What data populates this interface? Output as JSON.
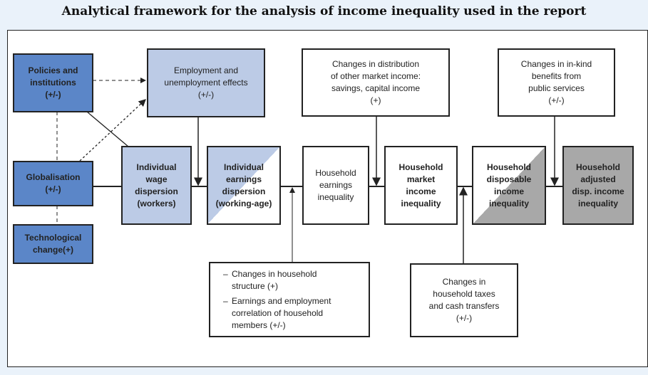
{
  "title": "Analytical framework for the analysis of income inequality used in the report",
  "boxes": {
    "policies": [
      "Policies and",
      "institutions",
      "(+/-)"
    ],
    "globalisation": [
      "Globalisation",
      "(+/-)"
    ],
    "technological": [
      "Technological",
      "change(+)"
    ],
    "employment": [
      "Employment and",
      "unemployment effects",
      "(+/-)"
    ],
    "wage": [
      "Individual",
      "wage",
      "dispersion",
      "(workers)"
    ],
    "earnings": [
      "Individual",
      "earnings",
      "dispersion",
      "(working-age)"
    ],
    "hh_earnings": [
      "Household",
      "earnings",
      "inequality"
    ],
    "market": [
      "Household",
      "market",
      "income",
      "inequality"
    ],
    "disposable": [
      "Household",
      "disposable",
      "income",
      "inequality"
    ],
    "adjusted": [
      "Household",
      "adjusted",
      "disp. income",
      "inequality"
    ],
    "other_market": [
      "Changes in distribution",
      "of other market income:",
      "savings, capital income",
      "(+)"
    ],
    "in_kind": [
      "Changes in in-kind",
      "benefits from",
      "public services",
      "(+/-)"
    ],
    "hh_structure": [
      "Changes in household structure (+)",
      "Earnings and employment correlation of household members (+/-)"
    ],
    "taxes": [
      "Changes in",
      "household taxes",
      "and cash transfers",
      "(+/-)"
    ]
  },
  "colors": {
    "dark_blue": "#5b86c8",
    "light_blue": "#bccbe6",
    "grey": "#a8a8a8"
  }
}
